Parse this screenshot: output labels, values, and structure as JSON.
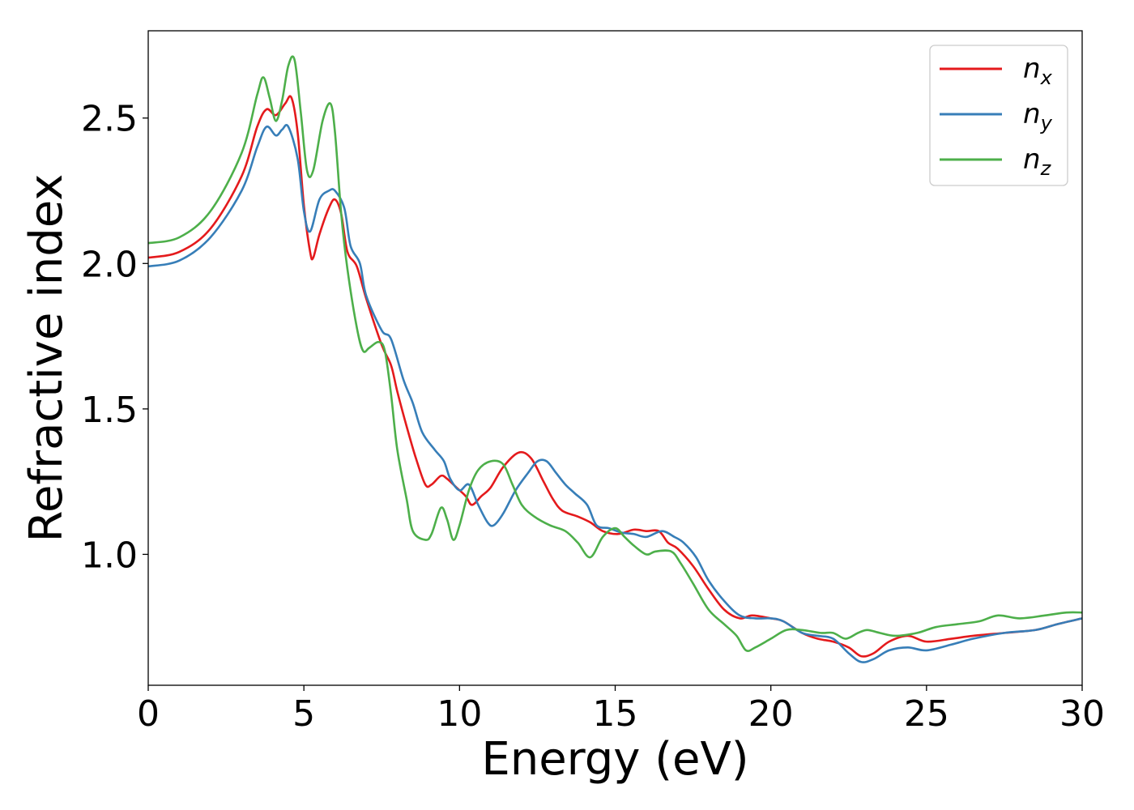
{
  "chart_data": {
    "type": "line",
    "title": "",
    "xlabel": "Energy (eV)",
    "ylabel": "Refractive index",
    "xlim": [
      0,
      30
    ],
    "ylim": [
      0.55,
      2.8
    ],
    "xticks": [
      {
        "value": 0,
        "label": "0"
      },
      {
        "value": 5,
        "label": "5"
      },
      {
        "value": 10,
        "label": "10"
      },
      {
        "value": 15,
        "label": "15"
      },
      {
        "value": 20,
        "label": "20"
      },
      {
        "value": 25,
        "label": "25"
      },
      {
        "value": 30,
        "label": "30"
      }
    ],
    "yticks": [
      {
        "value": 1.0,
        "label": "1.0"
      },
      {
        "value": 1.5,
        "label": "1.5"
      },
      {
        "value": 2.0,
        "label": "2.0"
      },
      {
        "value": 2.5,
        "label": "2.5"
      }
    ],
    "grid": false,
    "legend_position": "top-right",
    "series": [
      {
        "name": "n",
        "subscript": "x",
        "color": "#e41a1c",
        "points": [
          [
            0,
            2.02
          ],
          [
            1,
            2.04
          ],
          [
            2,
            2.12
          ],
          [
            3,
            2.3
          ],
          [
            3.5,
            2.47
          ],
          [
            3.8,
            2.53
          ],
          [
            4.1,
            2.51
          ],
          [
            4.4,
            2.55
          ],
          [
            4.6,
            2.57
          ],
          [
            4.8,
            2.45
          ],
          [
            5.0,
            2.2
          ],
          [
            5.2,
            2.04
          ],
          [
            5.3,
            2.02
          ],
          [
            5.5,
            2.1
          ],
          [
            5.8,
            2.19
          ],
          [
            6.0,
            2.22
          ],
          [
            6.2,
            2.17
          ],
          [
            6.4,
            2.04
          ],
          [
            6.7,
            1.99
          ],
          [
            7.0,
            1.88
          ],
          [
            7.5,
            1.72
          ],
          [
            7.8,
            1.65
          ],
          [
            8.0,
            1.56
          ],
          [
            8.3,
            1.44
          ],
          [
            8.6,
            1.33
          ],
          [
            8.9,
            1.24
          ],
          [
            9.1,
            1.24
          ],
          [
            9.4,
            1.27
          ],
          [
            9.6,
            1.26
          ],
          [
            9.9,
            1.23
          ],
          [
            10.2,
            1.2
          ],
          [
            10.4,
            1.17
          ],
          [
            10.7,
            1.2
          ],
          [
            11.0,
            1.23
          ],
          [
            11.4,
            1.3
          ],
          [
            11.9,
            1.35
          ],
          [
            12.3,
            1.33
          ],
          [
            12.7,
            1.25
          ],
          [
            13.0,
            1.19
          ],
          [
            13.3,
            1.15
          ],
          [
            13.8,
            1.13
          ],
          [
            14.2,
            1.11
          ],
          [
            14.6,
            1.08
          ],
          [
            15.1,
            1.07
          ],
          [
            15.6,
            1.085
          ],
          [
            16.0,
            1.08
          ],
          [
            16.4,
            1.08
          ],
          [
            16.7,
            1.04
          ],
          [
            17.0,
            1.02
          ],
          [
            17.5,
            0.96
          ],
          [
            18.0,
            0.88
          ],
          [
            18.5,
            0.81
          ],
          [
            19.0,
            0.78
          ],
          [
            19.4,
            0.79
          ],
          [
            20.0,
            0.78
          ],
          [
            20.4,
            0.77
          ],
          [
            21.0,
            0.73
          ],
          [
            21.5,
            0.71
          ],
          [
            22.0,
            0.7
          ],
          [
            22.5,
            0.68
          ],
          [
            22.9,
            0.65
          ],
          [
            23.3,
            0.66
          ],
          [
            23.8,
            0.7
          ],
          [
            24.4,
            0.72
          ],
          [
            25.0,
            0.7
          ],
          [
            25.8,
            0.71
          ],
          [
            26.5,
            0.72
          ],
          [
            27.5,
            0.73
          ],
          [
            28.5,
            0.74
          ],
          [
            29.2,
            0.76
          ],
          [
            30,
            0.78
          ]
        ]
      },
      {
        "name": "n",
        "subscript": "y",
        "color": "#377eb8",
        "points": [
          [
            0,
            1.99
          ],
          [
            1,
            2.01
          ],
          [
            2,
            2.09
          ],
          [
            3,
            2.25
          ],
          [
            3.5,
            2.4
          ],
          [
            3.8,
            2.47
          ],
          [
            4.1,
            2.44
          ],
          [
            4.3,
            2.46
          ],
          [
            4.5,
            2.47
          ],
          [
            4.8,
            2.36
          ],
          [
            5.0,
            2.18
          ],
          [
            5.2,
            2.11
          ],
          [
            5.5,
            2.22
          ],
          [
            5.8,
            2.25
          ],
          [
            6.0,
            2.25
          ],
          [
            6.3,
            2.19
          ],
          [
            6.5,
            2.06
          ],
          [
            6.8,
            2.0
          ],
          [
            7.0,
            1.89
          ],
          [
            7.5,
            1.77
          ],
          [
            7.8,
            1.74
          ],
          [
            8.2,
            1.6
          ],
          [
            8.5,
            1.52
          ],
          [
            8.8,
            1.42
          ],
          [
            9.2,
            1.36
          ],
          [
            9.5,
            1.32
          ],
          [
            9.7,
            1.26
          ],
          [
            10.0,
            1.22
          ],
          [
            10.3,
            1.24
          ],
          [
            10.6,
            1.17
          ],
          [
            10.9,
            1.11
          ],
          [
            11.1,
            1.1
          ],
          [
            11.4,
            1.14
          ],
          [
            11.8,
            1.22
          ],
          [
            12.2,
            1.28
          ],
          [
            12.5,
            1.32
          ],
          [
            12.8,
            1.32
          ],
          [
            13.1,
            1.28
          ],
          [
            13.4,
            1.24
          ],
          [
            13.7,
            1.21
          ],
          [
            14.1,
            1.17
          ],
          [
            14.4,
            1.1
          ],
          [
            14.8,
            1.09
          ],
          [
            15.2,
            1.075
          ],
          [
            15.6,
            1.07
          ],
          [
            16.0,
            1.06
          ],
          [
            16.5,
            1.08
          ],
          [
            16.9,
            1.06
          ],
          [
            17.2,
            1.04
          ],
          [
            17.6,
            0.99
          ],
          [
            18.0,
            0.91
          ],
          [
            18.5,
            0.84
          ],
          [
            19.0,
            0.79
          ],
          [
            19.5,
            0.78
          ],
          [
            20.0,
            0.78
          ],
          [
            20.4,
            0.77
          ],
          [
            21.0,
            0.73
          ],
          [
            21.5,
            0.72
          ],
          [
            22.0,
            0.71
          ],
          [
            22.5,
            0.66
          ],
          [
            22.9,
            0.63
          ],
          [
            23.3,
            0.64
          ],
          [
            23.8,
            0.67
          ],
          [
            24.4,
            0.68
          ],
          [
            25.0,
            0.67
          ],
          [
            25.8,
            0.69
          ],
          [
            26.5,
            0.71
          ],
          [
            27.5,
            0.73
          ],
          [
            28.5,
            0.74
          ],
          [
            29.2,
            0.76
          ],
          [
            30,
            0.78
          ]
        ]
      },
      {
        "name": "n",
        "subscript": "z",
        "color": "#4daf4a",
        "points": [
          [
            0,
            2.07
          ],
          [
            1,
            2.09
          ],
          [
            2,
            2.18
          ],
          [
            3,
            2.38
          ],
          [
            3.5,
            2.58
          ],
          [
            3.7,
            2.64
          ],
          [
            3.9,
            2.57
          ],
          [
            4.1,
            2.49
          ],
          [
            4.3,
            2.56
          ],
          [
            4.5,
            2.68
          ],
          [
            4.7,
            2.7
          ],
          [
            4.9,
            2.52
          ],
          [
            5.1,
            2.32
          ],
          [
            5.3,
            2.32
          ],
          [
            5.6,
            2.49
          ],
          [
            5.85,
            2.55
          ],
          [
            6.0,
            2.45
          ],
          [
            6.2,
            2.17
          ],
          [
            6.4,
            1.98
          ],
          [
            6.7,
            1.78
          ],
          [
            6.9,
            1.7
          ],
          [
            7.1,
            1.71
          ],
          [
            7.4,
            1.73
          ],
          [
            7.6,
            1.7
          ],
          [
            7.8,
            1.55
          ],
          [
            8.0,
            1.36
          ],
          [
            8.3,
            1.19
          ],
          [
            8.5,
            1.08
          ],
          [
            8.9,
            1.05
          ],
          [
            9.1,
            1.07
          ],
          [
            9.4,
            1.16
          ],
          [
            9.6,
            1.12
          ],
          [
            9.8,
            1.05
          ],
          [
            10.0,
            1.1
          ],
          [
            10.3,
            1.22
          ],
          [
            10.6,
            1.29
          ],
          [
            11.0,
            1.32
          ],
          [
            11.4,
            1.31
          ],
          [
            11.7,
            1.24
          ],
          [
            12.0,
            1.17
          ],
          [
            12.4,
            1.13
          ],
          [
            12.9,
            1.1
          ],
          [
            13.4,
            1.08
          ],
          [
            13.8,
            1.04
          ],
          [
            14.2,
            0.99
          ],
          [
            14.6,
            1.06
          ],
          [
            15.0,
            1.09
          ],
          [
            15.3,
            1.06
          ],
          [
            15.6,
            1.03
          ],
          [
            16.0,
            1.0
          ],
          [
            16.3,
            1.01
          ],
          [
            16.8,
            1.01
          ],
          [
            17.1,
            0.97
          ],
          [
            17.5,
            0.9
          ],
          [
            18.0,
            0.81
          ],
          [
            18.5,
            0.76
          ],
          [
            18.9,
            0.72
          ],
          [
            19.2,
            0.67
          ],
          [
            19.5,
            0.68
          ],
          [
            20.0,
            0.71
          ],
          [
            20.5,
            0.74
          ],
          [
            21.0,
            0.74
          ],
          [
            21.6,
            0.73
          ],
          [
            22.0,
            0.73
          ],
          [
            22.4,
            0.71
          ],
          [
            22.8,
            0.73
          ],
          [
            23.1,
            0.74
          ],
          [
            23.5,
            0.73
          ],
          [
            24.0,
            0.72
          ],
          [
            24.7,
            0.73
          ],
          [
            25.3,
            0.75
          ],
          [
            26.0,
            0.76
          ],
          [
            26.7,
            0.77
          ],
          [
            27.3,
            0.79
          ],
          [
            28.0,
            0.78
          ],
          [
            28.8,
            0.79
          ],
          [
            29.5,
            0.8
          ],
          [
            30,
            0.8
          ]
        ]
      }
    ]
  }
}
